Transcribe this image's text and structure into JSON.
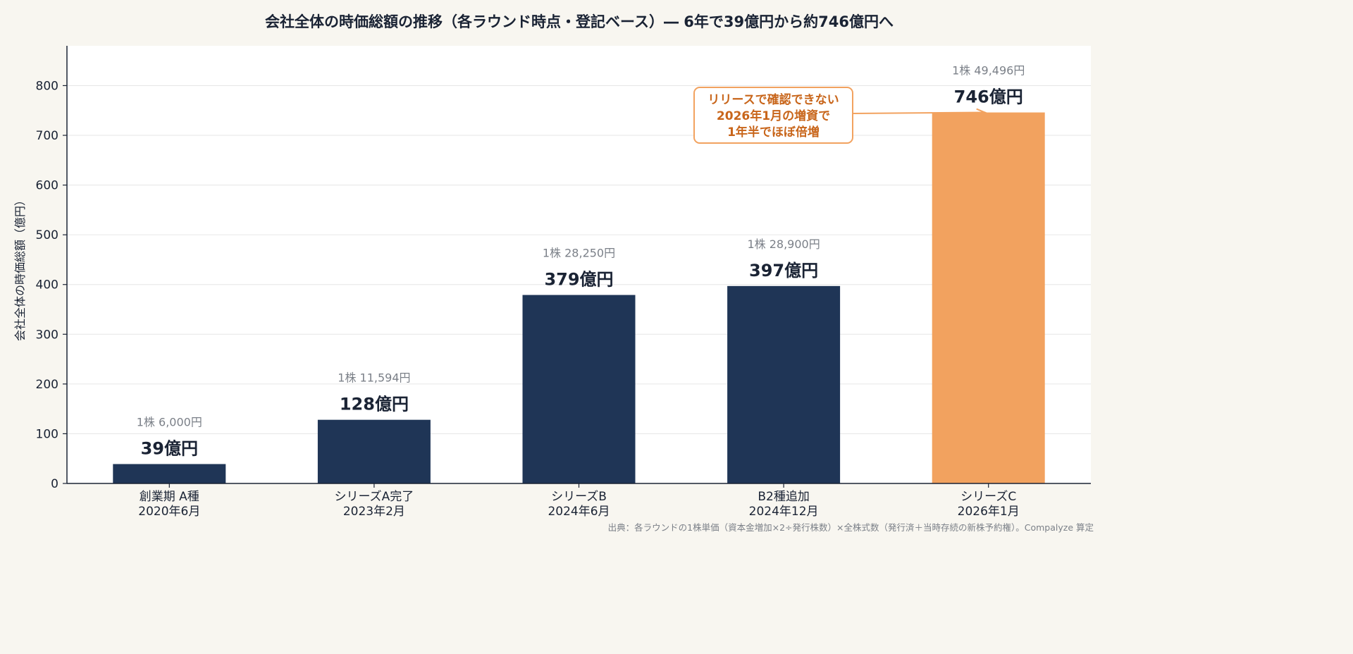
{
  "chart_data": {
    "type": "bar",
    "title": "会社全体の時価総額の推移（各ラウンド時点・登記ベース）― 6年で39億円から約746億円へ",
    "ylabel": "会社全体の時価総額（億円）",
    "xlabel": "",
    "ylim": [
      0,
      880
    ],
    "yticks": [
      0,
      100,
      200,
      300,
      400,
      500,
      600,
      700,
      800
    ],
    "grid": true,
    "categories": [
      [
        "創業期 A種",
        "2020年6月"
      ],
      [
        "シリーズA完了",
        "2023年2月"
      ],
      [
        "シリーズB",
        "2024年6月"
      ],
      [
        "B2種追加",
        "2024年12月"
      ],
      [
        "シリーズC",
        "2026年1月"
      ]
    ],
    "values": [
      39,
      128,
      379,
      397,
      746
    ],
    "value_labels": [
      "39億円",
      "128億円",
      "379億円",
      "397億円",
      "746億円"
    ],
    "price_labels": [
      "1株 6,000円",
      "1株 11,594円",
      "1株 28,250円",
      "1株 28,900円",
      "1株 49,496円"
    ],
    "highlight_index": 4,
    "colors": {
      "bar": "#1f3556",
      "highlight": "#f2a25f",
      "annotation": "#c8651a",
      "axis": "#1a2334",
      "grid": "#e6e6e6",
      "plot_bg": "#ffffff",
      "page_bg": "#f8f6f0",
      "price_text": "#7b8088"
    },
    "annotation": {
      "lines": [
        "リリースで確認できない",
        "2026年1月の増資で",
        "1年半でほぼ倍増"
      ],
      "target_index": 4
    },
    "source": "出典：各ラウンドの1株単価（資本金増加×2÷発行株数）×全株式数（発行済＋当時存続の新株予約権）。Compalyze 算定"
  }
}
